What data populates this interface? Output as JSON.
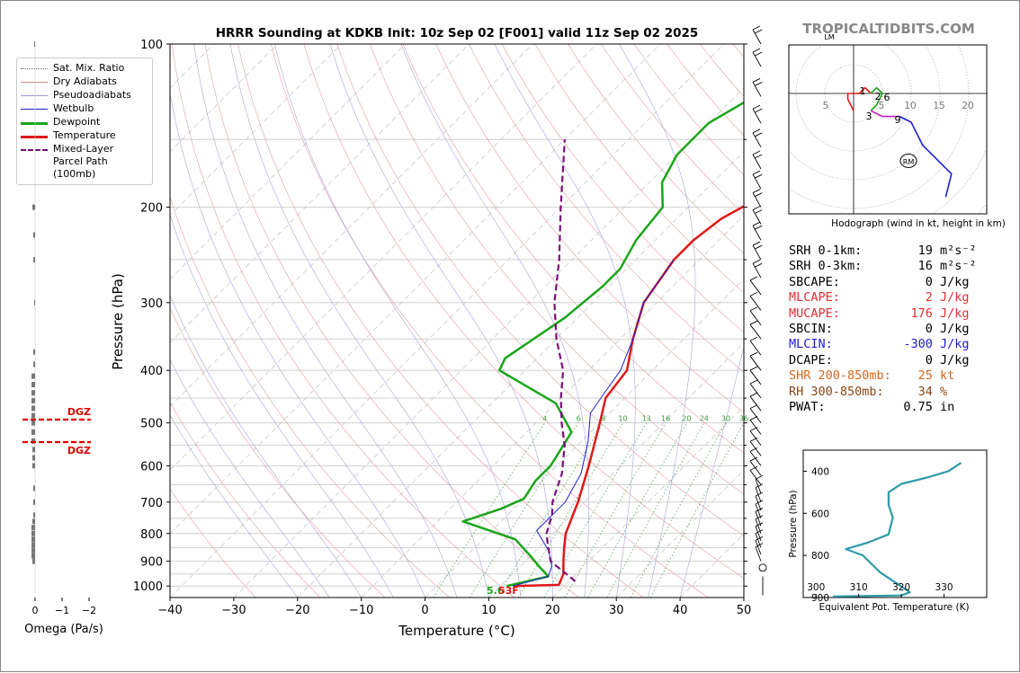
{
  "header": {
    "title": "HRRR Sounding at KDKB Init: 10z Sep 02 [F001] valid 11z Sep 02 2025",
    "watermark": "TROPICALTIDBITS.COM"
  },
  "legend": [
    {
      "label": "Sat. Mix. Ratio",
      "color": "#6a6a6a",
      "style": "dotted"
    },
    {
      "label": "Dry Adiabats",
      "color": "#d98c8c",
      "style": "solid-thin"
    },
    {
      "label": "Pseudoadiabats",
      "color": "#9a9ad6",
      "style": "solid-thin"
    },
    {
      "label": "Wetbulb",
      "color": "#1f1fd0",
      "style": "solid"
    },
    {
      "label": "Dewpoint",
      "color": "#1aa51a",
      "style": "thick"
    },
    {
      "label": "Temperature",
      "color": "#e01818",
      "style": "thick"
    },
    {
      "label": "Mixed-Layer\nParcel Path (100mb)",
      "color": "#7a0f7a",
      "style": "dashed"
    }
  ],
  "omega_panel": {
    "xlabel": "Omega (Pa/s)",
    "ticks": [
      "0",
      "−1",
      "−2"
    ],
    "dgz_label": "DGZ"
  },
  "skewt": {
    "xlabel": "Temperature (°C)",
    "ylabel": "Pressure (hPa)",
    "xticks": [
      "−40",
      "−30",
      "−20",
      "−10",
      "0",
      "10",
      "20",
      "30",
      "40",
      "50"
    ],
    "yticks": [
      "100",
      "200",
      "300",
      "400",
      "500",
      "600",
      "700",
      "800",
      "900",
      "1000"
    ],
    "mix_ratio_labels": [
      "4",
      "6",
      "8",
      "10",
      "13",
      "16",
      "20",
      "24",
      "30",
      "36"
    ],
    "surface_dewpoint_label": "5.6",
    "surface_temp_label": "53F"
  },
  "hodograph": {
    "caption": "Hodograph (wind in kt, height in km)",
    "lm_label": "LM",
    "rm_label": "RM",
    "ring_labels": [
      "5",
      "5",
      "10",
      "15",
      "20"
    ],
    "height_labels": [
      "1",
      "2",
      "6",
      "3",
      "9"
    ]
  },
  "stats": [
    {
      "label": "SRH 0-1km:",
      "value": "19",
      "unit": "m²s⁻²",
      "color": "#000000"
    },
    {
      "label": "SRH 0-3km:",
      "value": "16",
      "unit": "m²s⁻²",
      "color": "#000000"
    },
    {
      "label": "SBCAPE:",
      "value": "0",
      "unit": "J/kg",
      "color": "#000000"
    },
    {
      "label": "MLCAPE:",
      "value": "2",
      "unit": "J/kg",
      "color": "#e03030"
    },
    {
      "label": "MUCAPE:",
      "value": "176",
      "unit": "J/kg",
      "color": "#e03030"
    },
    {
      "label": "SBCIN:",
      "value": "0",
      "unit": "J/kg",
      "color": "#000000"
    },
    {
      "label": "MLCIN:",
      "value": "-300",
      "unit": "J/kg",
      "color": "#2020d0"
    },
    {
      "label": "DCAPE:",
      "value": "0",
      "unit": "J/kg",
      "color": "#000000"
    },
    {
      "label": "SHR 200-850mb:",
      "value": "25",
      "unit": "kt",
      "color": "#d2691e"
    },
    {
      "label": "RH 300-850mb:",
      "value": "34",
      "unit": "%",
      "color": "#8b4513"
    },
    {
      "label": "PWAT:",
      "value": "0.75",
      "unit": "in",
      "color": "#000000"
    }
  ],
  "theta_panel": {
    "xlabel": "Equivalent Pot. Temperature (K)",
    "ylabel": "Pressure (hPa)",
    "xticks": [
      "300",
      "310",
      "320",
      "330"
    ],
    "yticks": [
      "400",
      "600",
      "800",
      "900"
    ]
  },
  "chart_data": [
    {
      "type": "line",
      "title": "HRRR Sounding at KDKB Init: 10z Sep 02 [F001] valid 11z Sep 02 2025",
      "xlabel": "Temperature (°C)",
      "ylabel": "Pressure (hPa)",
      "xlim": [
        -40,
        50
      ],
      "ylim": [
        1050,
        100
      ],
      "yscale": "log",
      "series": [
        {
          "name": "Temperature",
          "color": "#e01818",
          "points": [
            [
              12,
              1000
            ],
            [
              19,
              995
            ],
            [
              18,
              950
            ],
            [
              16,
              900
            ],
            [
              14,
              850
            ],
            [
              12,
              800
            ],
            [
              9,
              700
            ],
            [
              5,
              600
            ],
            [
              0,
              500
            ],
            [
              -3,
              450
            ],
            [
              -4,
              400
            ],
            [
              -8,
              350
            ],
            [
              -12,
              300
            ],
            [
              -14,
              250
            ],
            [
              -14,
              230
            ],
            [
              -13,
              210
            ],
            [
              -10,
              190
            ],
            [
              -5,
              170
            ],
            [
              -3,
              150
            ],
            [
              -1,
              130
            ],
            [
              1,
              115
            ],
            [
              4,
              100
            ]
          ]
        },
        {
          "name": "Dewpoint",
          "color": "#1aa51a",
          "points": [
            [
              11,
              1000
            ],
            [
              16,
              960
            ],
            [
              13,
              920
            ],
            [
              10,
              880
            ],
            [
              5,
              820
            ],
            [
              -6,
              760
            ],
            [
              -2,
              720
            ],
            [
              0,
              690
            ],
            [
              -1,
              640
            ],
            [
              -1,
              600
            ],
            [
              -3,
              520
            ],
            [
              -10,
              460
            ],
            [
              -24,
              400
            ],
            [
              -25,
              380
            ],
            [
              -22,
              320
            ],
            [
              -21,
              280
            ],
            [
              -21,
              260
            ],
            [
              -23,
              230
            ],
            [
              -24,
              200
            ],
            [
              -28,
              180
            ],
            [
              -30,
              160
            ],
            [
              -30,
              140
            ],
            [
              -26,
              120
            ],
            [
              -24,
              100
            ]
          ]
        },
        {
          "name": "Wetbulb",
          "color": "#1f1fd0",
          "points": [
            [
              12,
              1000
            ],
            [
              16,
              960
            ],
            [
              15,
              920
            ],
            [
              12,
              860
            ],
            [
              7,
              790
            ],
            [
              7,
              740
            ],
            [
              7,
              700
            ],
            [
              5,
              620
            ],
            [
              1,
              540
            ],
            [
              -3,
              480
            ],
            [
              -4,
              440
            ],
            [
              -5,
              400
            ],
            [
              -8,
              350
            ],
            [
              -12,
              300
            ],
            [
              -14,
              250
            ]
          ]
        },
        {
          "name": "Mixed-Layer Parcel Path (100mb)",
          "color": "#7a0f7a",
          "points": [
            [
              21,
              980
            ],
            [
              14,
              900
            ],
            [
              11,
              840
            ],
            [
              9,
              800
            ],
            [
              7,
              740
            ],
            [
              5,
              700
            ],
            [
              2,
              620
            ],
            [
              -2,
              550
            ],
            [
              -6,
              500
            ],
            [
              -10,
              450
            ],
            [
              -14,
              400
            ],
            [
              -20,
              350
            ],
            [
              -26,
              300
            ],
            [
              -32,
              250
            ],
            [
              -40,
              200
            ],
            [
              -50,
              150
            ]
          ]
        }
      ]
    },
    {
      "type": "line",
      "title": "Hodograph (wind in kt, height in km)",
      "xlim": [
        -22,
        22
      ],
      "ylim": [
        -20,
        8
      ],
      "series": [
        {
          "name": "0-1 km",
          "color": "#e01818",
          "points": [
            [
              0,
              -3
            ],
            [
              -1,
              -1
            ],
            [
              -1,
              0
            ],
            [
              1,
              0
            ],
            [
              2,
              1
            ],
            [
              3,
              0
            ]
          ]
        },
        {
          "name": "1-3 km",
          "color": "#1aa51a",
          "points": [
            [
              3,
              0
            ],
            [
              4,
              1
            ],
            [
              5,
              0
            ],
            [
              4,
              -2
            ],
            [
              3,
              -3
            ]
          ]
        },
        {
          "name": "3-9 km",
          "color": "#c020c0",
          "points": [
            [
              3,
              -3
            ],
            [
              5,
              -4
            ],
            [
              8,
              -4
            ]
          ]
        },
        {
          "name": "9+ km",
          "color": "#1f1fd0",
          "points": [
            [
              8,
              -4
            ],
            [
              10,
              -5
            ],
            [
              12,
              -9
            ],
            [
              17,
              -14
            ],
            [
              16,
              -18
            ]
          ]
        }
      ]
    },
    {
      "type": "line",
      "title": "",
      "xlabel": "Equivalent Pot. Temperature (K)",
      "ylabel": "Pressure (hPa)",
      "xlim": [
        297,
        340
      ],
      "ylim": [
        1000,
        300
      ],
      "series": [
        {
          "name": "Equivalent Pot. Temperature",
          "color": "#2f9aa8",
          "points": [
            [
              304,
              995
            ],
            [
              320,
              990
            ],
            [
              322,
              975
            ],
            [
              318,
              920
            ],
            [
              315,
              880
            ],
            [
              311,
              800
            ],
            [
              307,
              770
            ],
            [
              312,
              740
            ],
            [
              317,
              700
            ],
            [
              318,
              620
            ],
            [
              317,
              560
            ],
            [
              317,
              500
            ],
            [
              320,
              460
            ],
            [
              326,
              430
            ],
            [
              331,
              400
            ],
            [
              334,
              360
            ]
          ]
        }
      ]
    }
  ]
}
